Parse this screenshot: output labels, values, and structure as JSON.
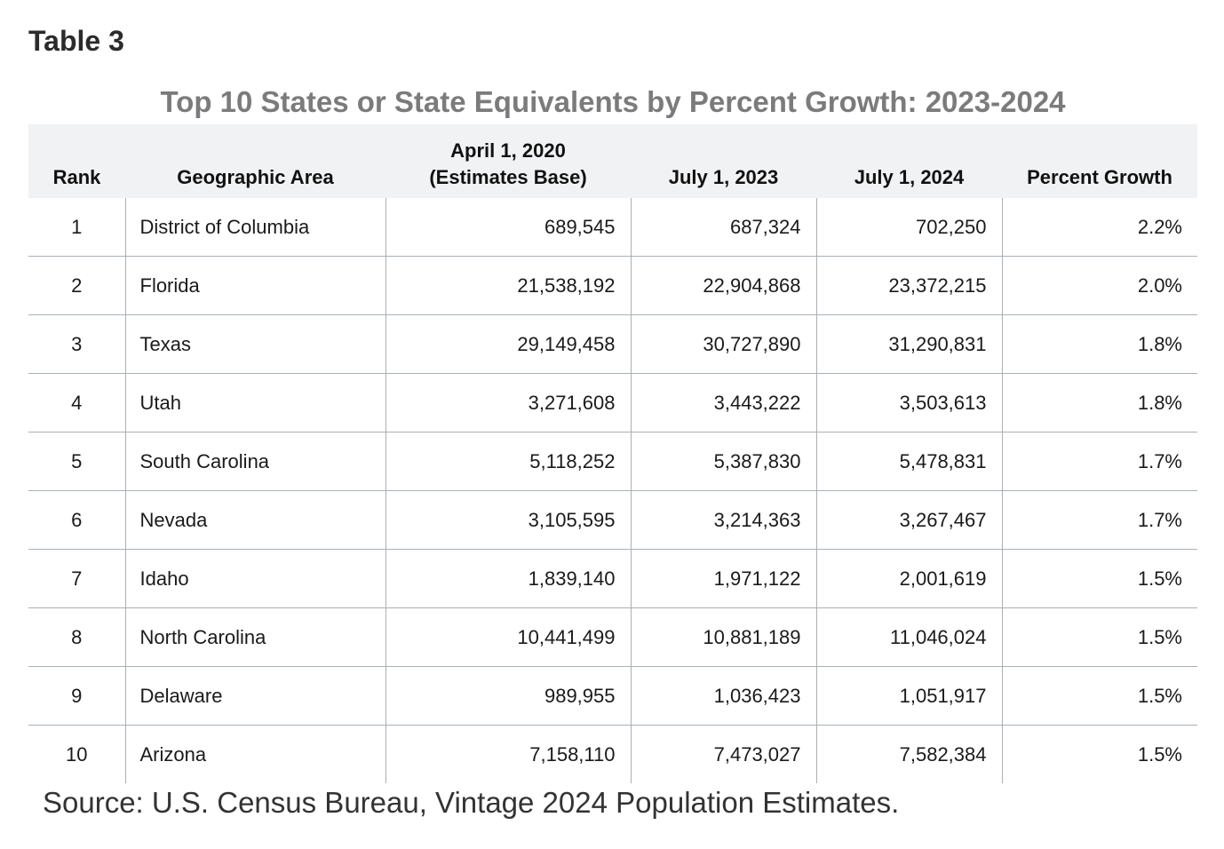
{
  "label": "Table 3",
  "title": "Top 10 States or State Equivalents by Percent Growth: 2023-2024",
  "headers": {
    "rank": "Rank",
    "area": "Geographic Area",
    "base_line1": "April 1, 2020",
    "base_line2": "(Estimates Base)",
    "y2023": "July 1, 2023",
    "y2024": "July 1, 2024",
    "growth": "Percent Growth"
  },
  "rows": [
    {
      "rank": "1",
      "area": "District of Columbia",
      "base": "689,545",
      "y2023": "687,324",
      "y2024": "702,250",
      "growth": "2.2%"
    },
    {
      "rank": "2",
      "area": "Florida",
      "base": "21,538,192",
      "y2023": "22,904,868",
      "y2024": "23,372,215",
      "growth": "2.0%"
    },
    {
      "rank": "3",
      "area": "Texas",
      "base": "29,149,458",
      "y2023": "30,727,890",
      "y2024": "31,290,831",
      "growth": "1.8%"
    },
    {
      "rank": "4",
      "area": "Utah",
      "base": "3,271,608",
      "y2023": "3,443,222",
      "y2024": "3,503,613",
      "growth": "1.8%"
    },
    {
      "rank": "5",
      "area": "South Carolina",
      "base": "5,118,252",
      "y2023": "5,387,830",
      "y2024": "5,478,831",
      "growth": "1.7%"
    },
    {
      "rank": "6",
      "area": "Nevada",
      "base": "3,105,595",
      "y2023": "3,214,363",
      "y2024": "3,267,467",
      "growth": "1.7%"
    },
    {
      "rank": "7",
      "area": "Idaho",
      "base": "1,839,140",
      "y2023": "1,971,122",
      "y2024": "2,001,619",
      "growth": "1.5%"
    },
    {
      "rank": "8",
      "area": "North Carolina",
      "base": "10,441,499",
      "y2023": "10,881,189",
      "y2024": "11,046,024",
      "growth": "1.5%"
    },
    {
      "rank": "9",
      "area": "Delaware",
      "base": "989,955",
      "y2023": "1,036,423",
      "y2024": "1,051,917",
      "growth": "1.5%"
    },
    {
      "rank": "10",
      "area": "Arizona",
      "base": "7,158,110",
      "y2023": "7,473,027",
      "y2024": "7,582,384",
      "growth": "1.5%"
    }
  ],
  "source": "Source: U.S. Census Bureau, Vintage 2024 Population Estimates."
}
